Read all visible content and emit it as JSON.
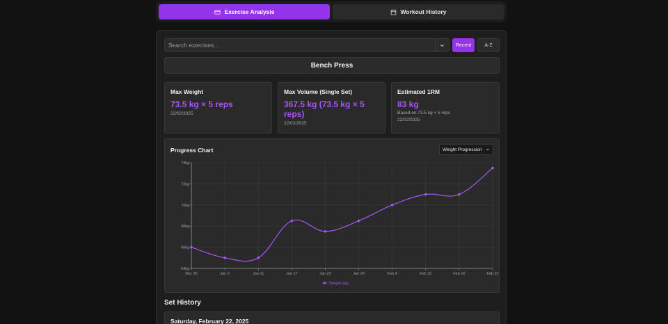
{
  "tabs": [
    {
      "label": "Exercise Analysis",
      "icon": "card-icon",
      "active": true
    },
    {
      "label": "Workout History",
      "icon": "calendar-icon",
      "active": false
    }
  ],
  "search": {
    "placeholder": "Search exercises...",
    "value": ""
  },
  "sort": {
    "recent_label": "Recent",
    "az_label": "A-Z",
    "active": "recent"
  },
  "exercise": {
    "name": "Bench Press"
  },
  "stats": {
    "max_weight": {
      "title": "Max Weight",
      "value": "73.5 kg × 5 reps",
      "date": "22/02/2025"
    },
    "max_volume": {
      "title": "Max Volume (Single Set)",
      "value": "367.5 kg (73.5 kg × 5 reps)",
      "date": "22/02/2025"
    },
    "estimated_1rm": {
      "title": "Estimated 1RM",
      "value": "83 kg",
      "basis": "Based on 73.5 kg × 5 reps",
      "date": "22/02/2025"
    }
  },
  "chart": {
    "title": "Progress Chart",
    "mode_selected": "Weight Progression"
  },
  "chart_data": {
    "type": "line",
    "x": [
      "Dec 30",
      "Jan 5",
      "Jan 11",
      "Jan 17",
      "Jan 23",
      "Jan 29",
      "Feb 4",
      "Feb 10",
      "Feb 16",
      "Feb 22"
    ],
    "series": [
      {
        "name": "Weight (kg)",
        "values": [
          66,
          65,
          65,
          68.5,
          67.5,
          68.5,
          70,
          71,
          71,
          73.5
        ]
      }
    ],
    "y_ticks": [
      "64kg",
      "66kg",
      "68kg",
      "70kg",
      "72kg",
      "74kg"
    ],
    "ylim": [
      64,
      74
    ],
    "grid": true,
    "legend": "bottom",
    "color": "#a855f7"
  },
  "set_history": {
    "title": "Set History",
    "days": [
      {
        "date": "Saturday, February 22, 2025"
      }
    ]
  }
}
